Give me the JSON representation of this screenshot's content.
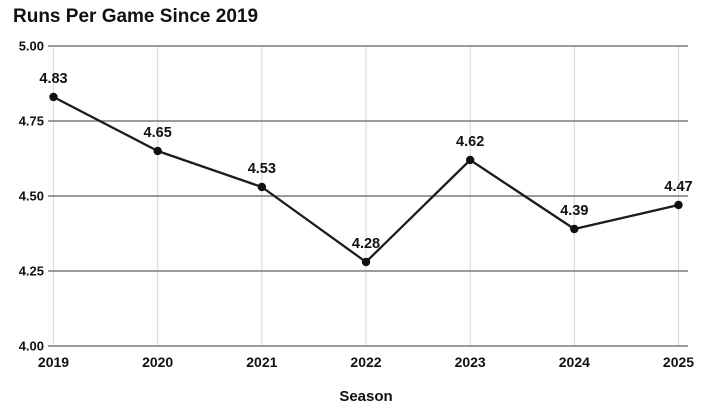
{
  "chart_data": {
    "type": "line",
    "title": "Runs Per Game Since 2019",
    "xlabel": "Season",
    "ylabel": "",
    "categories": [
      "2019",
      "2020",
      "2021",
      "2022",
      "2023",
      "2024",
      "2025"
    ],
    "values": [
      4.83,
      4.65,
      4.53,
      4.28,
      4.62,
      4.39,
      4.47
    ],
    "point_labels": [
      "4.83",
      "4.65",
      "4.53",
      "4.28",
      "4.62",
      "4.39",
      "4.47"
    ],
    "y_tick_labels": [
      "5.00",
      "4.75",
      "4.50",
      "4.25",
      "4.00"
    ],
    "ylim": [
      4.0,
      5.0
    ],
    "legend": "none",
    "grid": {
      "horizontal": true,
      "vertical": true
    },
    "colors": {
      "background": "#ffffff",
      "line": "#1c1c1c",
      "point": "#111111",
      "title_text": "#111111",
      "axis_text": "#111111",
      "label_text": "#111111",
      "h_gridline": "#7a7a7a",
      "v_gridline": "#dcdcdc"
    }
  }
}
